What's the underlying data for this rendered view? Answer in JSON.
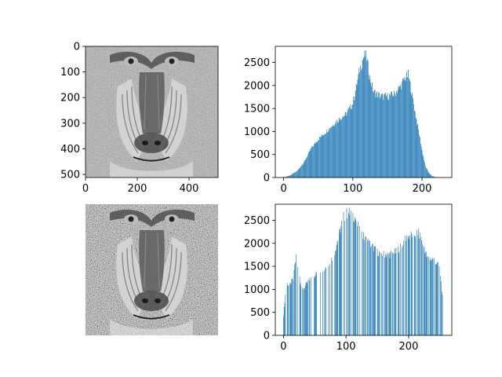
{
  "chart_data": [
    {
      "type": "image",
      "content": "grayscale mandrill (baboon) face photograph, original",
      "xlim": [
        0,
        512
      ],
      "ylim": [
        512,
        0
      ],
      "xticks": [
        "0",
        "200",
        "400"
      ],
      "yticks": [
        "0",
        "100",
        "200",
        "300",
        "400",
        "500"
      ],
      "axes_visible": true
    },
    {
      "type": "bar",
      "description": "histogram of original image intensities",
      "bar_color": "#1f77b4",
      "xlim": [
        -12,
        243
      ],
      "ylim": [
        0,
        2850
      ],
      "xticks": [
        "0",
        "100",
        "200"
      ],
      "yticks": [
        "0",
        "500",
        "1000",
        "1500",
        "2000",
        "2500"
      ],
      "x": [
        0,
        10,
        20,
        30,
        40,
        50,
        60,
        70,
        80,
        90,
        100,
        105,
        110,
        115,
        118,
        120,
        125,
        130,
        140,
        150,
        160,
        170,
        175,
        180,
        185,
        190,
        195,
        200,
        205,
        210,
        215,
        220,
        230
      ],
      "y": [
        0,
        50,
        150,
        350,
        650,
        850,
        1000,
        1150,
        1300,
        1400,
        1650,
        2000,
        2400,
        2650,
        2720,
        2650,
        2200,
        1900,
        1800,
        1800,
        1850,
        2050,
        2200,
        2280,
        1900,
        1450,
        1050,
        600,
        250,
        100,
        30,
        5,
        0
      ]
    },
    {
      "type": "image",
      "content": "grayscale mandrill (baboon) face photograph, histogram-equalized",
      "axes_visible": false
    },
    {
      "type": "bar",
      "description": "histogram of equalized image intensities (sparse bars)",
      "bar_color": "#1f77b4",
      "xlim": [
        -13,
        269
      ],
      "ylim": [
        0,
        2850
      ],
      "xticks": [
        "0",
        "100",
        "200"
      ],
      "yticks": [
        "0",
        "500",
        "1000",
        "1500",
        "2000",
        "2500"
      ],
      "x": [
        0,
        3,
        6,
        10,
        15,
        20,
        30,
        40,
        50,
        60,
        70,
        80,
        90,
        95,
        100,
        105,
        110,
        115,
        120,
        130,
        140,
        150,
        160,
        170,
        180,
        190,
        200,
        210,
        215,
        220,
        225,
        230,
        240,
        250,
        255
      ],
      "y": [
        450,
        900,
        1150,
        1100,
        1250,
        1750,
        1000,
        1200,
        1350,
        1450,
        1550,
        1750,
        2300,
        2600,
        2700,
        2720,
        2700,
        2600,
        2350,
        2150,
        2000,
        1850,
        1800,
        1800,
        1850,
        2050,
        2200,
        2250,
        2280,
        2150,
        1950,
        1700,
        1700,
        1500,
        700
      ]
    }
  ]
}
